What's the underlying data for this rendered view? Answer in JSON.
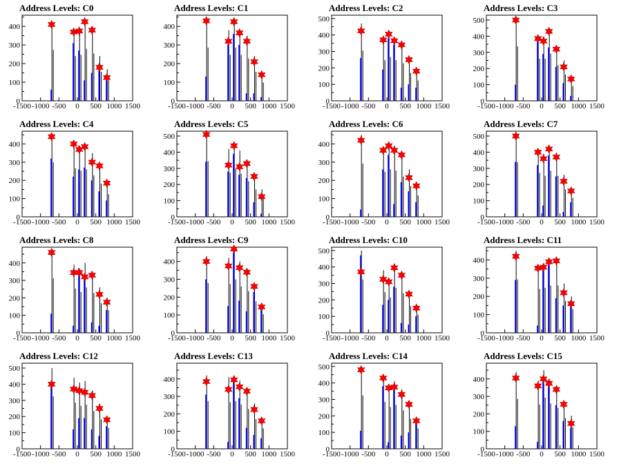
{
  "chart_data": {
    "type": "bar",
    "title_prefix": "Address Levels: ",
    "xlim": [
      -1500,
      1500
    ],
    "xticks": [
      -1500,
      -1000,
      -500,
      0,
      500,
      1000,
      1500
    ],
    "colors": {
      "black_hist": "#000000",
      "blue_hist": "#0000ff",
      "marker": "#ff0000"
    },
    "panels": [
      {
        "name": "C0",
        "ylim": [
          0,
          460
        ],
        "yticks": [
          0,
          100,
          200,
          300,
          400
        ],
        "peaks": [
          -700,
          -100,
          50,
          200,
          400,
          600,
          800
        ],
        "black": [
          420,
          370,
          380,
          430,
          390,
          240,
          170
        ],
        "blue": [
          60,
          310,
          270,
          110,
          150,
          200,
          130
        ],
        "markers": [
          410,
          370,
          375,
          425,
          380,
          180,
          125
        ]
      },
      {
        "name": "C1",
        "ylim": [
          0,
          460
        ],
        "yticks": [
          0,
          100,
          200,
          300,
          400
        ],
        "peaks": [
          -700,
          -100,
          50,
          200,
          400,
          600,
          800
        ],
        "black": [
          440,
          380,
          440,
          380,
          350,
          240,
          150
        ],
        "blue": [
          130,
          300,
          360,
          300,
          40,
          40,
          20
        ],
        "markers": [
          430,
          320,
          425,
          365,
          320,
          210,
          140
        ]
      },
      {
        "name": "C2",
        "ylim": [
          0,
          520
        ],
        "yticks": [
          0,
          100,
          200,
          300,
          400,
          500
        ],
        "peaks": [
          -700,
          -100,
          50,
          200,
          400,
          600,
          800
        ],
        "black": [
          470,
          380,
          410,
          380,
          350,
          260,
          190
        ],
        "blue": [
          260,
          190,
          380,
          340,
          80,
          100,
          80
        ],
        "markers": [
          425,
          370,
          405,
          365,
          340,
          250,
          180
        ]
      },
      {
        "name": "C3",
        "ylim": [
          0,
          530
        ],
        "yticks": [
          0,
          100,
          200,
          300,
          400,
          500
        ],
        "peaks": [
          -700,
          -100,
          50,
          200,
          400,
          600,
          800
        ],
        "black": [
          520,
          400,
          400,
          450,
          340,
          250,
          140
        ],
        "blue": [
          100,
          370,
          290,
          330,
          210,
          110,
          30
        ],
        "markers": [
          500,
          385,
          370,
          430,
          320,
          210,
          135
        ]
      },
      {
        "name": "C4",
        "ylim": [
          0,
          470
        ],
        "yticks": [
          0,
          100,
          200,
          300,
          400
        ],
        "peaks": [
          -700,
          -100,
          50,
          200,
          400,
          600,
          800
        ],
        "black": [
          460,
          410,
          390,
          400,
          350,
          280,
          190
        ],
        "blue": [
          320,
          220,
          260,
          270,
          200,
          140,
          90
        ],
        "markers": [
          440,
          400,
          370,
          385,
          300,
          280,
          185
        ]
      },
      {
        "name": "C5",
        "ylim": [
          0,
          530
        ],
        "yticks": [
          0,
          100,
          200,
          300,
          400,
          500
        ],
        "peaks": [
          -700,
          -100,
          50,
          200,
          400,
          600,
          800
        ],
        "black": [
          530,
          420,
          460,
          410,
          340,
          260,
          170
        ],
        "blue": [
          340,
          280,
          390,
          260,
          240,
          90,
          20
        ],
        "markers": [
          510,
          320,
          440,
          310,
          330,
          250,
          125
        ]
      },
      {
        "name": "C6",
        "ylim": [
          0,
          470
        ],
        "yticks": [
          0,
          100,
          200,
          300,
          400
        ],
        "peaks": [
          -700,
          -100,
          50,
          200,
          400,
          600,
          800
        ],
        "black": [
          450,
          380,
          400,
          390,
          340,
          260,
          180
        ],
        "blue": [
          40,
          260,
          340,
          70,
          190,
          140,
          80
        ],
        "markers": [
          420,
          365,
          390,
          365,
          340,
          215,
          170
        ]
      },
      {
        "name": "C7",
        "ylim": [
          0,
          530
        ],
        "yticks": [
          0,
          100,
          200,
          300,
          400,
          500
        ],
        "peaks": [
          -700,
          -100,
          50,
          200,
          400,
          600,
          800
        ],
        "black": [
          520,
          420,
          390,
          440,
          390,
          260,
          180
        ],
        "blue": [
          340,
          320,
          70,
          380,
          250,
          30,
          90
        ],
        "markers": [
          500,
          400,
          360,
          420,
          370,
          220,
          160
        ]
      },
      {
        "name": "C8",
        "ylim": [
          0,
          490
        ],
        "yticks": [
          0,
          100,
          200,
          300,
          400
        ],
        "peaks": [
          -700,
          -100,
          50,
          200,
          400,
          600,
          800
        ],
        "black": [
          480,
          390,
          360,
          400,
          350,
          260,
          200
        ],
        "blue": [
          110,
          40,
          370,
          310,
          60,
          40,
          130
        ],
        "markers": [
          460,
          345,
          345,
          320,
          330,
          220,
          175
        ]
      },
      {
        "name": "C9",
        "ylim": [
          0,
          480
        ],
        "yticks": [
          0,
          100,
          200,
          300,
          400
        ],
        "peaks": [
          -700,
          -100,
          50,
          200,
          400,
          600,
          800
        ],
        "black": [
          430,
          420,
          460,
          400,
          360,
          270,
          160
        ],
        "blue": [
          300,
          150,
          450,
          180,
          120,
          230,
          140
        ],
        "markers": [
          400,
          375,
          470,
          365,
          340,
          260,
          145
        ]
      },
      {
        "name": "C10",
        "ylim": [
          0,
          520
        ],
        "yticks": [
          0,
          100,
          200,
          300,
          400,
          500
        ],
        "peaks": [
          -700,
          -100,
          50,
          200,
          400,
          600,
          800
        ],
        "black": [
          500,
          380,
          330,
          420,
          370,
          250,
          170
        ],
        "blue": [
          470,
          170,
          200,
          280,
          60,
          50,
          100
        ],
        "markers": [
          370,
          325,
          310,
          395,
          350,
          235,
          150
        ]
      },
      {
        "name": "C11",
        "ylim": [
          0,
          470
        ],
        "yticks": [
          0,
          100,
          200,
          300,
          400
        ],
        "peaks": [
          -700,
          -100,
          50,
          200,
          400,
          600,
          800
        ],
        "black": [
          450,
          370,
          380,
          400,
          400,
          270,
          200
        ],
        "blue": [
          290,
          40,
          370,
          380,
          190,
          150,
          150
        ],
        "markers": [
          420,
          355,
          360,
          390,
          395,
          220,
          160
        ]
      },
      {
        "name": "C12",
        "ylim": [
          0,
          530
        ],
        "yticks": [
          0,
          100,
          200,
          300,
          400,
          500
        ],
        "peaks": [
          -700,
          -100,
          50,
          200,
          400,
          600,
          800
        ],
        "black": [
          500,
          440,
          410,
          420,
          360,
          280,
          200
        ],
        "blue": [
          390,
          120,
          190,
          190,
          120,
          80,
          140
        ],
        "markers": [
          400,
          370,
          360,
          350,
          330,
          250,
          180
        ]
      },
      {
        "name": "C13",
        "ylim": [
          0,
          490
        ],
        "yticks": [
          0,
          100,
          200,
          300,
          400
        ],
        "peaks": [
          -700,
          -100,
          50,
          200,
          400,
          600,
          800
        ],
        "black": [
          420,
          410,
          420,
          390,
          350,
          260,
          180
        ],
        "blue": [
          310,
          40,
          390,
          290,
          120,
          80,
          60
        ],
        "markers": [
          385,
          340,
          395,
          355,
          330,
          225,
          160
        ]
      },
      {
        "name": "C14",
        "ylim": [
          0,
          520
        ],
        "yticks": [
          0,
          100,
          200,
          300,
          400,
          500
        ],
        "peaks": [
          -700,
          -100,
          50,
          200,
          400,
          600,
          800
        ],
        "black": [
          500,
          440,
          390,
          410,
          360,
          280,
          190
        ],
        "blue": [
          110,
          380,
          40,
          360,
          80,
          100,
          160
        ],
        "markers": [
          480,
          430,
          370,
          375,
          330,
          270,
          170
        ]
      },
      {
        "name": "C15",
        "ylim": [
          0,
          490
        ],
        "yticks": [
          0,
          100,
          200,
          300,
          400
        ],
        "peaks": [
          -700,
          -100,
          50,
          200,
          400,
          600,
          800
        ],
        "black": [
          440,
          390,
          450,
          400,
          360,
          270,
          190
        ],
        "blue": [
          130,
          40,
          400,
          380,
          250,
          160,
          120
        ],
        "markers": [
          405,
          360,
          400,
          375,
          340,
          255,
          145
        ]
      }
    ]
  }
}
